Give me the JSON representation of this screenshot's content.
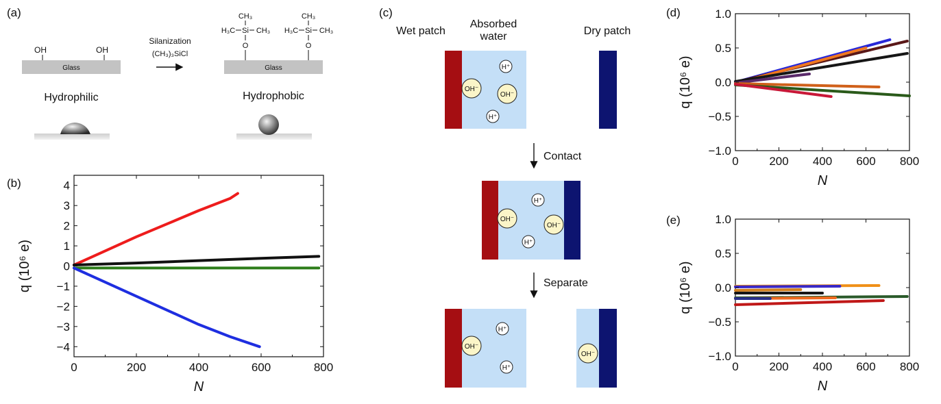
{
  "panel_a": {
    "label": "(a)",
    "oh": "OH",
    "glass": "Glass",
    "hydrophilic": "Hydrophilic",
    "hydrophobic": "Hydrophobic",
    "silanization": "Silanization",
    "reagent": "(CH₃)₃SiCl",
    "ch3": "CH₃",
    "h3c": "H₃C",
    "si": "Si",
    "o": "O"
  },
  "panel_c": {
    "label": "(c)",
    "wet_patch": "Wet patch",
    "absorbed_water_1": "Absorbed",
    "absorbed_water_2": "water",
    "dry_patch": "Dry patch",
    "contact": "Contact",
    "separate": "Separate",
    "h_plus": "H⁺",
    "oh_minus": "OH⁻",
    "colors": {
      "wet": "#a50e12",
      "dry": "#0d1470",
      "water": "#c4dff7",
      "ion": "#fbf5c8"
    }
  },
  "chart_data": [
    {
      "id": "b",
      "label": "(b)",
      "type": "line",
      "xlabel": "N",
      "ylabel": "q (10⁶ e)",
      "xlim": [
        0,
        800
      ],
      "ylim": [
        -4.5,
        4.5
      ],
      "xticks": [
        0,
        200,
        400,
        600,
        800
      ],
      "yticks": [
        4,
        3,
        2,
        1,
        0,
        -1,
        -2,
        -3,
        -4
      ],
      "grid": false,
      "series": [
        {
          "color": "#ee1c1c",
          "x": [
            0,
            100,
            200,
            300,
            400,
            500,
            525
          ],
          "y": [
            0.05,
            0.75,
            1.45,
            2.1,
            2.75,
            3.35,
            3.6
          ]
        },
        {
          "color": "#111111",
          "x": [
            0,
            200,
            400,
            600,
            785
          ],
          "y": [
            0.05,
            0.15,
            0.27,
            0.38,
            0.48
          ]
        },
        {
          "color": "#2d7d1a",
          "x": [
            0,
            200,
            400,
            600,
            785
          ],
          "y": [
            -0.1,
            -0.1,
            -0.1,
            -0.1,
            -0.1
          ]
        },
        {
          "color": "#1e2ee0",
          "x": [
            0,
            100,
            200,
            300,
            400,
            500,
            595
          ],
          "y": [
            -0.1,
            -0.8,
            -1.5,
            -2.2,
            -2.9,
            -3.5,
            -4.0
          ]
        }
      ]
    },
    {
      "id": "d",
      "label": "(d)",
      "type": "line",
      "xlabel": "N",
      "ylabel": "q (10⁶ e)",
      "xlim": [
        0,
        800
      ],
      "ylim": [
        -1.0,
        1.0
      ],
      "xticks": [
        0,
        200,
        400,
        600,
        800
      ],
      "yticks": [
        1.0,
        0.5,
        0.0,
        -0.5,
        -1.0
      ],
      "grid": false,
      "series": [
        {
          "color": "#2828d8",
          "x": [
            0,
            710
          ],
          "y": [
            0.0,
            0.62
          ]
        },
        {
          "color": "#5a1818",
          "x": [
            0,
            790
          ],
          "y": [
            0.0,
            0.6
          ]
        },
        {
          "color": "#f07820",
          "x": [
            0,
            600
          ],
          "y": [
            -0.02,
            0.5
          ]
        },
        {
          "color": "#161616",
          "x": [
            0,
            790
          ],
          "y": [
            0.01,
            0.42
          ]
        },
        {
          "color": "#5a2a6a",
          "x": [
            0,
            340
          ],
          "y": [
            -0.01,
            0.12
          ]
        },
        {
          "color": "#d0601a",
          "x": [
            0,
            660
          ],
          "y": [
            -0.02,
            -0.07
          ]
        },
        {
          "color": "#2a5a1a",
          "x": [
            0,
            800
          ],
          "y": [
            -0.04,
            -0.2
          ]
        },
        {
          "color": "#c81838",
          "x": [
            0,
            440
          ],
          "y": [
            -0.03,
            -0.21
          ]
        }
      ]
    },
    {
      "id": "e",
      "label": "(e)",
      "type": "line",
      "xlabel": "N",
      "ylabel": "q (10⁶ e)",
      "xlim": [
        0,
        800
      ],
      "ylim": [
        -1.0,
        1.0
      ],
      "xticks": [
        0,
        200,
        400,
        600,
        800
      ],
      "yticks": [
        1.0,
        0.5,
        0.0,
        -0.5,
        -1.0
      ],
      "grid": false,
      "series": [
        {
          "color": "#f09018",
          "x": [
            0,
            660
          ],
          "y": [
            0.02,
            0.03
          ]
        },
        {
          "color": "#3828c8",
          "x": [
            0,
            480
          ],
          "y": [
            0.01,
            0.02
          ]
        },
        {
          "color": "#d08020",
          "x": [
            0,
            300
          ],
          "y": [
            -0.04,
            -0.03
          ]
        },
        {
          "color": "#161616",
          "x": [
            0,
            400
          ],
          "y": [
            -0.08,
            -0.08
          ]
        },
        {
          "color": "#2a5a2a",
          "x": [
            0,
            790
          ],
          "y": [
            -0.15,
            -0.13
          ]
        },
        {
          "color": "#f06a20",
          "x": [
            0,
            460
          ],
          "y": [
            -0.16,
            -0.15
          ]
        },
        {
          "color": "#28308a",
          "x": [
            0,
            160
          ],
          "y": [
            -0.16,
            -0.16
          ]
        },
        {
          "color": "#c01818",
          "x": [
            0,
            680
          ],
          "y": [
            -0.25,
            -0.19
          ]
        }
      ]
    }
  ]
}
